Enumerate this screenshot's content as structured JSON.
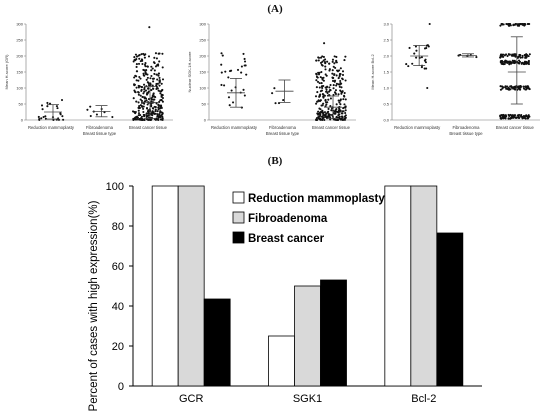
{
  "panel_a_label": "(A)",
  "panel_b_label": "(B)",
  "chart_data": [
    {
      "type": "scatter",
      "ylabel": "Mean H-score (GR)",
      "xlabel": "Breast tissue type",
      "categories": [
        "Reduction mammoplasty",
        "Fibroadenoma",
        "Breast cancer tissue"
      ],
      "ylim": [
        0,
        300
      ],
      "yticks": [
        0,
        50,
        100,
        150,
        200,
        250,
        300
      ],
      "summary": [
        {
          "mean": 25,
          "sd_low": 3,
          "sd_high": 48
        },
        {
          "mean": 27,
          "sd_low": 10,
          "sd_high": 45
        },
        {
          "mean": 55,
          "sd_low": 5,
          "sd_high": 105
        }
      ],
      "strips": [
        {
          "n": 24,
          "lo": 0,
          "hi": 90,
          "lowbias": 2.2
        },
        {
          "n": 8,
          "lo": 8,
          "hi": 55,
          "lowbias": 1.2
        },
        {
          "n": 330,
          "lo": 0,
          "hi": 210,
          "lowbias": 1.8,
          "extra": [
            290
          ]
        }
      ]
    },
    {
      "type": "scatter",
      "ylabel": "Nuclear SGK-1H-score",
      "xlabel": "Breast tissue type",
      "categories": [
        "Reduction mammoplasty",
        "Fibroadenoma",
        "Breast cancer tissue"
      ],
      "ylim": [
        0,
        300
      ],
      "yticks": [
        0,
        50,
        100,
        150,
        200,
        250,
        300
      ],
      "summary": [
        {
          "mean": 85,
          "sd_low": 40,
          "sd_high": 130
        },
        {
          "mean": 90,
          "sd_low": 55,
          "sd_high": 125
        },
        {
          "mean": 40,
          "sd_low": 5,
          "sd_high": 75
        }
      ],
      "strips": [
        {
          "n": 28,
          "lo": 25,
          "hi": 210,
          "lowbias": 1.0
        },
        {
          "n": 5,
          "lo": 50,
          "hi": 125,
          "lowbias": 1.0
        },
        {
          "n": 300,
          "lo": 0,
          "hi": 200,
          "lowbias": 1.8,
          "extra": [
            240
          ]
        }
      ]
    },
    {
      "type": "scatter",
      "ylabel": "Mean H-score Bcl-2",
      "xlabel": "Breast tissue type",
      "categories": [
        "Reduction mammoplasty",
        "Fibroadenoma",
        "Breast cancer tissue"
      ],
      "ylim": [
        0,
        3.0
      ],
      "yticks": [
        0,
        0.5,
        1.0,
        1.5,
        2.0,
        2.5,
        3.0
      ],
      "tick_labels": [
        "0.0",
        "0.5",
        "1.0",
        "1.5",
        "2.0",
        "2.5",
        "3.0"
      ],
      "summary": [
        {
          "mean": 2.0,
          "sd_low": 1.7,
          "sd_high": 2.33
        },
        {
          "mean": 2.02,
          "sd_low": 1.97,
          "sd_high": 2.07
        },
        {
          "mean": 1.5,
          "sd_low": 0.5,
          "sd_high": 2.6
        }
      ],
      "strips": [
        {
          "n": 22,
          "lo": 1.6,
          "hi": 2.4,
          "lowbias": 1.0,
          "extra": [
            1.0,
            3.0
          ]
        },
        {
          "n": 6,
          "lo": 1.95,
          "hi": 2.1,
          "lowbias": 1.0
        },
        {
          "n": 320,
          "bands": [
            0.1,
            1.0,
            1.8,
            2.0,
            3.0
          ],
          "jitter_y": 0.06
        }
      ]
    },
    {
      "type": "bar",
      "ylabel": "Percent of cases with high expression(%)",
      "categories": [
        "GCR",
        "SGK1",
        "Bcl-2"
      ],
      "ylim": [
        0,
        100
      ],
      "yticks": [
        0,
        20,
        40,
        60,
        80,
        100
      ],
      "legend_position": "top-right",
      "series": [
        {
          "name": "Reduction mammoplasty",
          "values": [
            100,
            25,
            100
          ],
          "color": "#ffffff"
        },
        {
          "name": "Fibroadenoma",
          "values": [
            100,
            50,
            100
          ],
          "color": "#d9d9d9"
        },
        {
          "name": "Breast cancer",
          "values": [
            43.5,
            53,
            76.5
          ],
          "color": "#000000"
        }
      ]
    }
  ]
}
